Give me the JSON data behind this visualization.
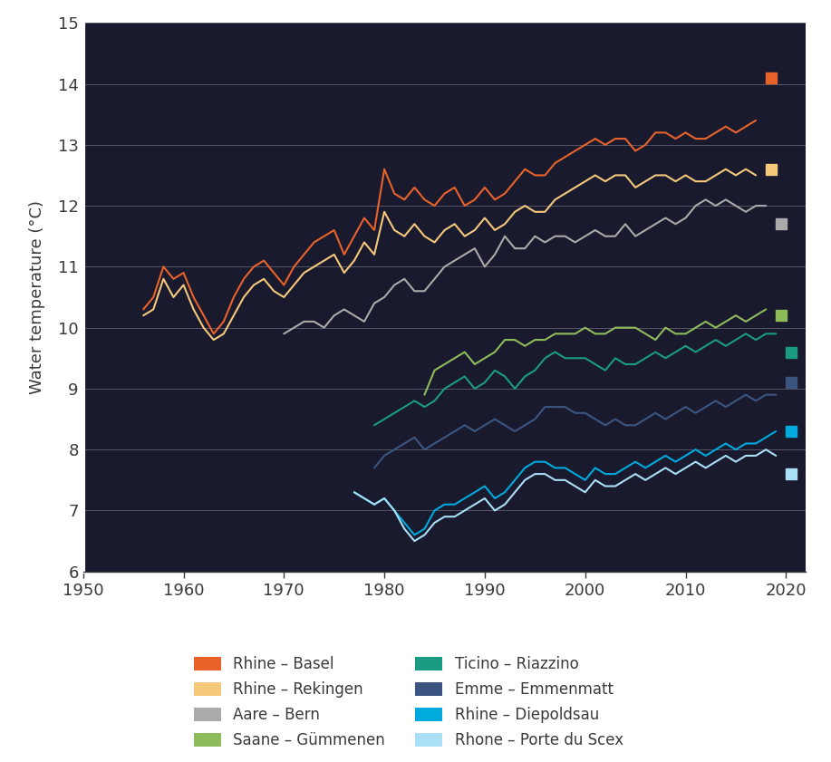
{
  "ylabel": "Water temperature (°C)",
  "ylim": [
    6,
    15
  ],
  "yticks": [
    6,
    7,
    8,
    9,
    10,
    11,
    12,
    13,
    14,
    15
  ],
  "xlim": [
    1950,
    2022
  ],
  "xticks": [
    1950,
    1960,
    1970,
    1980,
    1990,
    2000,
    2010,
    2020
  ],
  "figure_bg": "#ffffff",
  "plot_bg": "#1a1a2e",
  "text_color": "#3a3a3a",
  "tick_color": "#3a3a3a",
  "grid_color": "#555566",
  "left_spine_color": "#ffffff",
  "bottom_spine_color": "#3a3a3a",
  "series": [
    {
      "name": "Rhine – Basel",
      "color": "#E8622A",
      "start_year": 1956,
      "data": [
        10.3,
        10.5,
        11.0,
        10.8,
        10.9,
        10.5,
        10.2,
        9.9,
        10.1,
        10.5,
        10.8,
        11.0,
        11.1,
        10.9,
        10.7,
        11.0,
        11.2,
        11.4,
        11.5,
        11.6,
        11.2,
        11.5,
        11.8,
        11.6,
        12.6,
        12.2,
        12.1,
        12.3,
        12.1,
        12.0,
        12.2,
        12.3,
        12.0,
        12.1,
        12.3,
        12.1,
        12.2,
        12.4,
        12.6,
        12.5,
        12.5,
        12.7,
        12.8,
        12.9,
        13.0,
        13.1,
        13.0,
        13.1,
        13.1,
        12.9,
        13.0,
        13.2,
        13.2,
        13.1,
        13.2,
        13.1,
        13.1,
        13.2,
        13.3,
        13.2,
        13.3,
        13.4
      ],
      "dot_value": 14.1
    },
    {
      "name": "Rhine – Rekingen",
      "color": "#F5C87A",
      "start_year": 1956,
      "data": [
        10.2,
        10.3,
        10.8,
        10.5,
        10.7,
        10.3,
        10.0,
        9.8,
        9.9,
        10.2,
        10.5,
        10.7,
        10.8,
        10.6,
        10.5,
        10.7,
        10.9,
        11.0,
        11.1,
        11.2,
        10.9,
        11.1,
        11.4,
        11.2,
        11.9,
        11.6,
        11.5,
        11.7,
        11.5,
        11.4,
        11.6,
        11.7,
        11.5,
        11.6,
        11.8,
        11.6,
        11.7,
        11.9,
        12.0,
        11.9,
        11.9,
        12.1,
        12.2,
        12.3,
        12.4,
        12.5,
        12.4,
        12.5,
        12.5,
        12.3,
        12.4,
        12.5,
        12.5,
        12.4,
        12.5,
        12.4,
        12.4,
        12.5,
        12.6,
        12.5,
        12.6,
        12.5
      ],
      "dot_value": 12.6
    },
    {
      "name": "Aare – Bern",
      "color": "#AAAAAA",
      "start_year": 1970,
      "data": [
        9.9,
        10.0,
        10.1,
        10.1,
        10.0,
        10.2,
        10.3,
        10.2,
        10.1,
        10.4,
        10.5,
        10.7,
        10.8,
        10.6,
        10.6,
        10.8,
        11.0,
        11.1,
        11.2,
        11.3,
        11.0,
        11.2,
        11.5,
        11.3,
        11.3,
        11.5,
        11.4,
        11.5,
        11.5,
        11.4,
        11.5,
        11.6,
        11.5,
        11.5,
        11.7,
        11.5,
        11.6,
        11.7,
        11.8,
        11.7,
        11.8,
        12.0,
        12.1,
        12.0,
        12.1,
        12.0,
        11.9,
        12.0,
        12.0
      ],
      "dot_value": 11.7
    },
    {
      "name": "Saane – Gümmenen",
      "color": "#8FBC5A",
      "start_year": 1984,
      "data": [
        8.9,
        9.3,
        9.4,
        9.5,
        9.6,
        9.4,
        9.5,
        9.6,
        9.8,
        9.8,
        9.7,
        9.8,
        9.8,
        9.9,
        9.9,
        9.9,
        10.0,
        9.9,
        9.9,
        10.0,
        10.0,
        10.0,
        9.9,
        9.8,
        10.0,
        9.9,
        9.9,
        10.0,
        10.1,
        10.0,
        10.1,
        10.2,
        10.1,
        10.2,
        10.3
      ],
      "dot_value": 10.2
    },
    {
      "name": "Ticino – Riazzino",
      "color": "#1A9B82",
      "start_year": 1979,
      "data": [
        8.4,
        8.5,
        8.6,
        8.7,
        8.8,
        8.7,
        8.8,
        9.0,
        9.1,
        9.2,
        9.0,
        9.1,
        9.3,
        9.2,
        9.0,
        9.2,
        9.3,
        9.5,
        9.6,
        9.5,
        9.5,
        9.5,
        9.4,
        9.3,
        9.5,
        9.4,
        9.4,
        9.5,
        9.6,
        9.5,
        9.6,
        9.7,
        9.6,
        9.7,
        9.8,
        9.7,
        9.8,
        9.9,
        9.8,
        9.9,
        9.9
      ],
      "dot_value": 9.6
    },
    {
      "name": "Emme – Emmenmatt",
      "color": "#3B5580",
      "start_year": 1979,
      "data": [
        7.7,
        7.9,
        8.0,
        8.1,
        8.2,
        8.0,
        8.1,
        8.2,
        8.3,
        8.4,
        8.3,
        8.4,
        8.5,
        8.4,
        8.3,
        8.4,
        8.5,
        8.7,
        8.7,
        8.7,
        8.6,
        8.6,
        8.5,
        8.4,
        8.5,
        8.4,
        8.4,
        8.5,
        8.6,
        8.5,
        8.6,
        8.7,
        8.6,
        8.7,
        8.8,
        8.7,
        8.8,
        8.9,
        8.8,
        8.9,
        8.9
      ],
      "dot_value": 9.1
    },
    {
      "name": "Rhine – Diepoldsau",
      "color": "#00AADD",
      "start_year": 1977,
      "data": [
        7.3,
        7.2,
        7.1,
        7.2,
        7.0,
        6.8,
        6.6,
        6.7,
        7.0,
        7.1,
        7.1,
        7.2,
        7.3,
        7.4,
        7.2,
        7.3,
        7.5,
        7.7,
        7.8,
        7.8,
        7.7,
        7.7,
        7.6,
        7.5,
        7.7,
        7.6,
        7.6,
        7.7,
        7.8,
        7.7,
        7.8,
        7.9,
        7.8,
        7.9,
        8.0,
        7.9,
        8.0,
        8.1,
        8.0,
        8.1,
        8.1,
        8.2,
        8.3
      ],
      "dot_value": 8.3
    },
    {
      "name": "Rhone – Porte du Scex",
      "color": "#AAE0F5",
      "start_year": 1977,
      "data": [
        7.3,
        7.2,
        7.1,
        7.2,
        7.0,
        6.7,
        6.5,
        6.6,
        6.8,
        6.9,
        6.9,
        7.0,
        7.1,
        7.2,
        7.0,
        7.1,
        7.3,
        7.5,
        7.6,
        7.6,
        7.5,
        7.5,
        7.4,
        7.3,
        7.5,
        7.4,
        7.4,
        7.5,
        7.6,
        7.5,
        7.6,
        7.7,
        7.6,
        7.7,
        7.8,
        7.7,
        7.8,
        7.9,
        7.8,
        7.9,
        7.9,
        8.0,
        7.9
      ],
      "dot_value": 7.6
    }
  ]
}
